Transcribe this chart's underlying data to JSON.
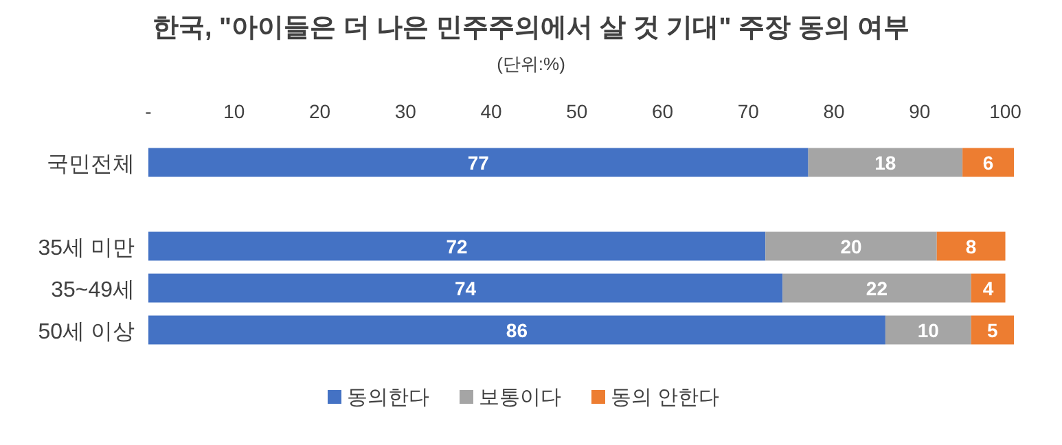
{
  "chart_data": {
    "type": "bar",
    "orientation": "horizontal",
    "stacked": true,
    "title": "한국, \"아이들은 더 나은 민주주의에서 살 것 기대\" 주장 동의 여부",
    "subtitle": "(단위:%)",
    "categories": [
      "국민전체",
      null,
      "35세 미만",
      "35~49세",
      "50세 이상"
    ],
    "series": [
      {
        "name": "동의한다",
        "color": "#4472c4",
        "values": [
          77,
          null,
          72,
          74,
          86
        ]
      },
      {
        "name": "보통이다",
        "color": "#a5a5a5",
        "values": [
          18,
          null,
          20,
          22,
          10
        ]
      },
      {
        "name": "동의 안한다",
        "color": "#ed7d31",
        "values": [
          6,
          null,
          8,
          4,
          5
        ]
      }
    ],
    "xlim": [
      0,
      101
    ],
    "xticks": [
      {
        "value": 0,
        "label": "-"
      },
      10,
      20,
      30,
      40,
      50,
      60,
      70,
      80,
      90,
      100
    ],
    "data_labels": true,
    "legend": "bottom",
    "grid": false
  }
}
